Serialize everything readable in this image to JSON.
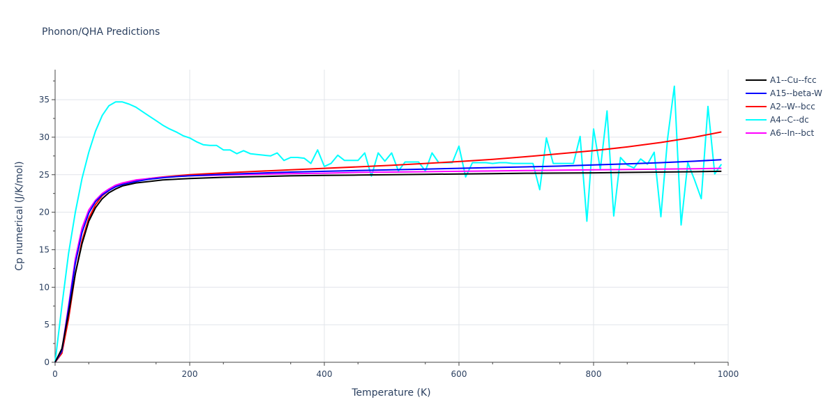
{
  "chart_data": {
    "type": "line",
    "title": "Phonon/QHA Predictions",
    "xlabel": "Temperature (K)",
    "ylabel": "Cp numerical (J/K/mol)",
    "xlim": [
      0,
      1000
    ],
    "ylim": [
      0,
      39
    ],
    "xticks": [
      0,
      200,
      400,
      600,
      800,
      1000
    ],
    "yticks": [
      0,
      5,
      10,
      15,
      20,
      25,
      30,
      35
    ],
    "grid": true,
    "legend_position": "top-right",
    "series": [
      {
        "name": "A1--Cu--fcc",
        "color": "#000000",
        "x": [
          0,
          10,
          20,
          30,
          40,
          50,
          60,
          70,
          80,
          90,
          100,
          120,
          140,
          160,
          180,
          200,
          250,
          300,
          350,
          400,
          450,
          500,
          550,
          600,
          650,
          700,
          750,
          800,
          850,
          900,
          950,
          990
        ],
        "y": [
          0,
          1.8,
          6.5,
          11.8,
          15.8,
          18.8,
          20.6,
          21.8,
          22.6,
          23.1,
          23.5,
          23.9,
          24.1,
          24.3,
          24.4,
          24.5,
          24.65,
          24.75,
          24.85,
          24.9,
          24.95,
          25.0,
          25.05,
          25.1,
          25.15,
          25.2,
          25.22,
          25.25,
          25.3,
          25.35,
          25.4,
          25.45
        ]
      },
      {
        "name": "A15--beta-W",
        "color": "#0000ff",
        "x": [
          0,
          10,
          20,
          30,
          40,
          50,
          60,
          70,
          80,
          90,
          100,
          120,
          140,
          160,
          180,
          200,
          250,
          300,
          350,
          400,
          450,
          500,
          550,
          600,
          650,
          700,
          750,
          800,
          850,
          900,
          950,
          990
        ],
        "y": [
          0,
          1.5,
          7.2,
          13.2,
          17.3,
          19.9,
          21.4,
          22.3,
          22.9,
          23.4,
          23.7,
          24.1,
          24.4,
          24.6,
          24.75,
          24.85,
          25.05,
          25.2,
          25.35,
          25.45,
          25.55,
          25.65,
          25.75,
          25.85,
          25.95,
          26.05,
          26.15,
          26.3,
          26.45,
          26.6,
          26.8,
          27.0
        ]
      },
      {
        "name": "A2--W--bcc",
        "color": "#ff0000",
        "x": [
          0,
          10,
          20,
          30,
          40,
          50,
          60,
          70,
          80,
          90,
          100,
          120,
          140,
          160,
          180,
          200,
          250,
          300,
          350,
          400,
          450,
          500,
          550,
          600,
          650,
          700,
          750,
          800,
          850,
          900,
          950,
          990
        ],
        "y": [
          0,
          1.2,
          5.8,
          11.8,
          16.2,
          19.2,
          21.0,
          22.2,
          22.9,
          23.4,
          23.8,
          24.2,
          24.5,
          24.7,
          24.85,
          25.0,
          25.25,
          25.45,
          25.65,
          25.85,
          26.05,
          26.25,
          26.5,
          26.75,
          27.05,
          27.4,
          27.8,
          28.2,
          28.7,
          29.3,
          30.0,
          30.7
        ]
      },
      {
        "name": "A4--C--dc",
        "color": "#00ffff",
        "x": [
          0,
          10,
          20,
          30,
          40,
          50,
          60,
          70,
          80,
          90,
          100,
          110,
          120,
          130,
          140,
          150,
          160,
          170,
          180,
          190,
          200,
          210,
          220,
          230,
          240,
          250,
          260,
          270,
          280,
          290,
          300,
          310,
          320,
          330,
          340,
          350,
          360,
          370,
          380,
          390,
          400,
          410,
          420,
          430,
          440,
          450,
          460,
          470,
          480,
          490,
          500,
          510,
          520,
          530,
          540,
          550,
          560,
          570,
          580,
          590,
          600,
          610,
          620,
          630,
          640,
          650,
          660,
          670,
          680,
          690,
          700,
          710,
          720,
          730,
          740,
          750,
          760,
          770,
          780,
          790,
          800,
          810,
          820,
          830,
          840,
          850,
          860,
          870,
          880,
          890,
          900,
          910,
          920,
          930,
          940,
          950,
          960,
          970,
          980,
          990
        ],
        "y": [
          0,
          7.5,
          14.5,
          20.0,
          24.5,
          28.0,
          30.8,
          32.9,
          34.2,
          34.7,
          34.7,
          34.4,
          34.0,
          33.4,
          32.8,
          32.2,
          31.6,
          31.1,
          30.7,
          30.2,
          29.9,
          29.4,
          29.0,
          28.9,
          28.9,
          28.3,
          28.3,
          27.8,
          28.2,
          27.8,
          27.7,
          27.6,
          27.5,
          27.9,
          26.9,
          27.3,
          27.3,
          27.2,
          26.5,
          28.3,
          26.1,
          26.5,
          27.6,
          26.9,
          26.9,
          26.9,
          27.9,
          24.8,
          27.9,
          26.8,
          27.9,
          25.5,
          26.7,
          26.7,
          26.7,
          25.5,
          27.9,
          26.6,
          26.6,
          26.6,
          28.8,
          24.7,
          26.6,
          26.6,
          26.6,
          26.5,
          26.6,
          26.6,
          26.5,
          26.5,
          26.5,
          26.5,
          23.0,
          29.9,
          26.5,
          26.5,
          26.5,
          26.5,
          30.1,
          18.8,
          31.1,
          25.7,
          33.5,
          19.5,
          27.3,
          26.3,
          25.9,
          27.1,
          26.4,
          28.0,
          19.4,
          29.8,
          36.8,
          18.3,
          26.6,
          24.3,
          21.8,
          34.1,
          25.1,
          26.4
        ]
      },
      {
        "name": "A6--In--bct",
        "color": "#ff00ff",
        "x": [
          0,
          10,
          20,
          30,
          40,
          50,
          60,
          70,
          80,
          90,
          100,
          120,
          140,
          160,
          180,
          200,
          250,
          300,
          350,
          400,
          450,
          500,
          550,
          600,
          650,
          700,
          750,
          800,
          850,
          900,
          950,
          990
        ],
        "y": [
          0,
          1.6,
          7.5,
          13.8,
          17.9,
          20.3,
          21.6,
          22.5,
          23.1,
          23.6,
          23.9,
          24.3,
          24.5,
          24.65,
          24.75,
          24.85,
          24.95,
          25.05,
          25.15,
          25.2,
          25.3,
          25.35,
          25.4,
          25.45,
          25.5,
          25.55,
          25.6,
          25.65,
          25.7,
          25.75,
          25.8,
          25.85
        ]
      }
    ]
  }
}
